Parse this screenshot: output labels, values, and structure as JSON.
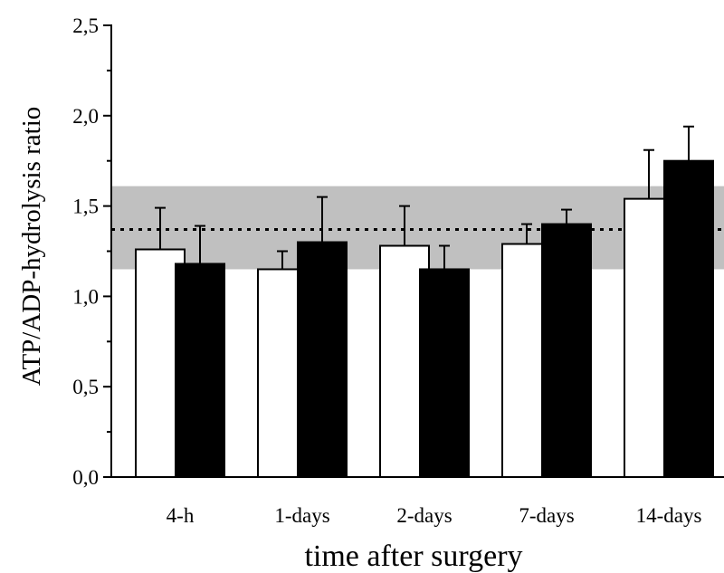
{
  "chart_data": {
    "type": "bar",
    "xlabel": "time after surgery",
    "ylabel": "ATP/ADP-hydrolysis ratio",
    "ylim": [
      0,
      2.5
    ],
    "yticks": [
      "0,0",
      "0,5",
      "1,0",
      "1,5",
      "2,0",
      "2,5"
    ],
    "categories": [
      "4-h",
      "1-days",
      "2-days",
      "7-days",
      "14-days"
    ],
    "series": [
      {
        "color": "#ffffff",
        "values": [
          1.26,
          1.15,
          1.28,
          1.29,
          1.54
        ],
        "errors": [
          0.23,
          0.1,
          0.22,
          0.11,
          0.27
        ]
      },
      {
        "color": "#000000",
        "values": [
          1.18,
          1.3,
          1.15,
          1.4,
          1.75
        ],
        "errors": [
          0.21,
          0.25,
          0.13,
          0.08,
          0.19
        ]
      }
    ],
    "reference_band": [
      1.15,
      1.61
    ],
    "reference_line": 1.37,
    "band_color": "#c0c0c0",
    "grid": false,
    "legend": "none"
  }
}
